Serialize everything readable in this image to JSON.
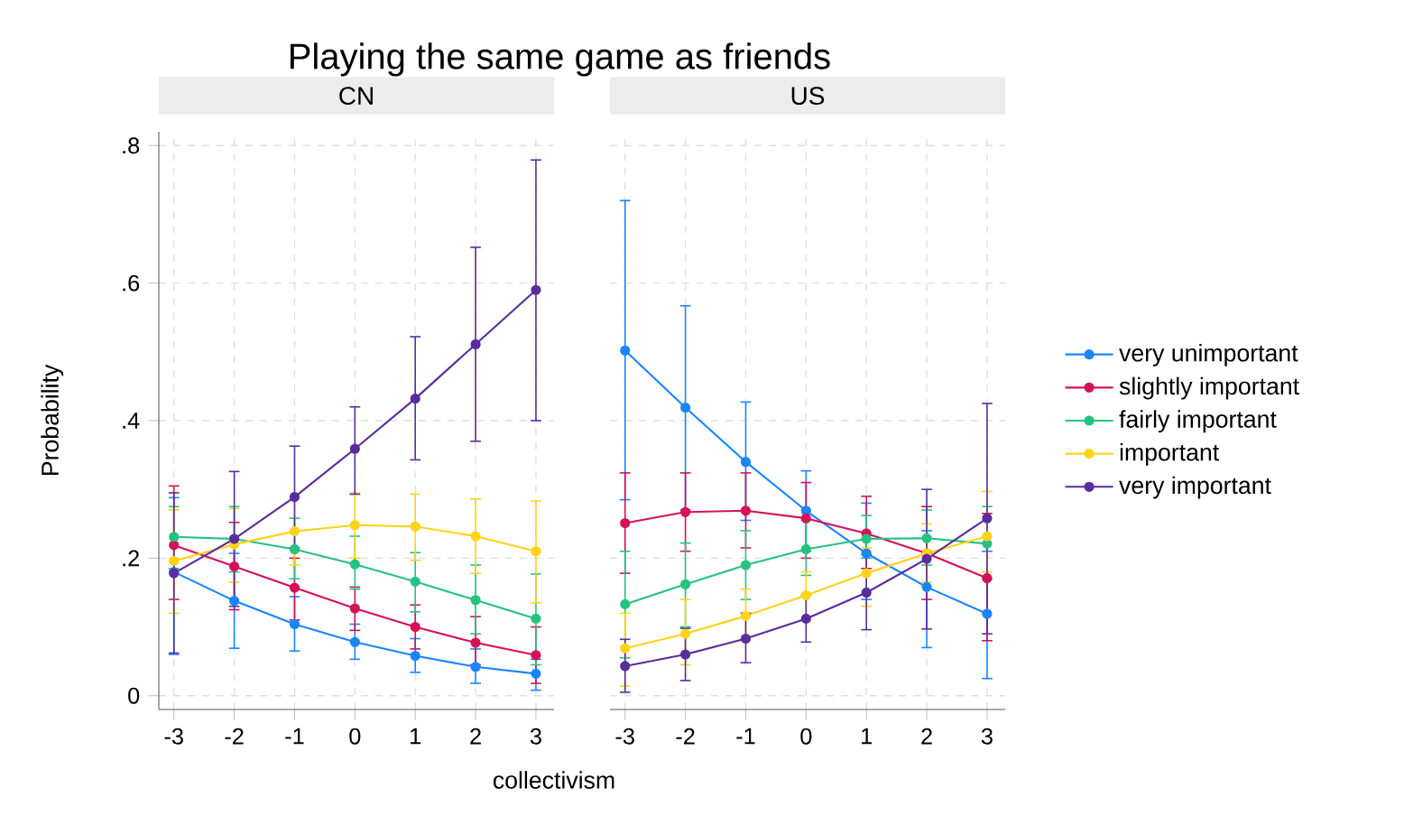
{
  "chart_data": [
    {
      "type": "line",
      "title": "Playing the same game as friends",
      "subtitle": "CN",
      "xlabel": "collectivism",
      "ylabel": "Probability",
      "x": [
        -3,
        -2,
        -1,
        0,
        1,
        2,
        3
      ],
      "xlim": [
        -3.25,
        3.3
      ],
      "ylim": [
        -0.02,
        0.82
      ],
      "xticks": [
        -3,
        -2,
        -1,
        0,
        1,
        2,
        3
      ],
      "yticks": [
        0,
        {
          "value": 0.2,
          "label": ".2"
        },
        {
          "value": 0.4,
          "label": ".4"
        },
        {
          "value": 0.6,
          "label": ".6"
        },
        {
          "value": 0.8,
          "label": ".8"
        }
      ],
      "grid": true,
      "marker": "circle",
      "series": [
        {
          "color": "#1a85ff",
          "values": [
            0.18,
            0.138,
            0.104,
            0.078,
            0.058,
            0.042,
            0.032
          ],
          "errors": [
            [
              0.06,
              0.288
            ],
            [
              0.069,
              0.207
            ],
            [
              0.065,
              0.144
            ],
            [
              0.053,
              0.104
            ],
            [
              0.034,
              0.083
            ],
            [
              0.018,
              0.068
            ],
            [
              0.008,
              0.053
            ]
          ]
        },
        {
          "color": "#d41159",
          "values": [
            0.219,
            0.188,
            0.157,
            0.127,
            0.1,
            0.077,
            0.059
          ],
          "errors": [
            [
              0.14,
              0.305
            ],
            [
              0.125,
              0.252
            ],
            [
              0.11,
              0.2
            ],
            [
              0.095,
              0.158
            ],
            [
              0.068,
              0.132
            ],
            [
              0.045,
              0.115
            ],
            [
              0.018,
              0.1
            ]
          ]
        },
        {
          "color": "#26c281",
          "values": [
            0.231,
            0.228,
            0.213,
            0.191,
            0.166,
            0.139,
            0.112
          ],
          "errors": [
            [
              0.185,
              0.275
            ],
            [
              0.18,
              0.275
            ],
            [
              0.17,
              0.258
            ],
            [
              0.155,
              0.232
            ],
            [
              0.122,
              0.208
            ],
            [
              0.09,
              0.19
            ],
            [
              0.045,
              0.177
            ]
          ]
        },
        {
          "color": "#ffd319",
          "values": [
            0.196,
            0.22,
            0.239,
            0.248,
            0.246,
            0.232,
            0.21
          ],
          "errors": [
            [
              0.12,
              0.27
            ],
            [
              0.165,
              0.272
            ],
            [
              0.19,
              0.29
            ],
            [
              0.2,
              0.295
            ],
            [
              0.197,
              0.293
            ],
            [
              0.178,
              0.286
            ],
            [
              0.135,
              0.283
            ]
          ]
        },
        {
          "color": "#5a2d9c",
          "values": [
            0.178,
            0.228,
            0.289,
            0.359,
            0.432,
            0.511,
            0.59
          ],
          "errors": [
            [
              0.062,
              0.295
            ],
            [
              0.13,
              0.326
            ],
            [
              0.215,
              0.363
            ],
            [
              0.293,
              0.42
            ],
            [
              0.343,
              0.522
            ],
            [
              0.37,
              0.652
            ],
            [
              0.4,
              0.779
            ]
          ]
        }
      ]
    },
    {
      "type": "line",
      "subtitle": "US",
      "tick_labels": "x",
      "x": [
        -3,
        -2,
        -1,
        0,
        1,
        2,
        3
      ],
      "xlim": [
        -3.25,
        3.3
      ],
      "ylim": [
        -0.02,
        0.82
      ],
      "xticks": [
        -3,
        -2,
        -1,
        0,
        1,
        2,
        3
      ],
      "yticks": [
        0,
        0.2,
        0.4,
        0.6,
        0.8
      ],
      "grid": true,
      "marker": "circle",
      "legend": "right",
      "series": [
        {
          "name": "very unimportant",
          "color": "#1a85ff",
          "values": [
            0.502,
            0.419,
            0.34,
            0.269,
            0.207,
            0.158,
            0.119
          ],
          "errors": [
            [
              0.285,
              0.72
            ],
            [
              0.27,
              0.567
            ],
            [
              0.255,
              0.427
            ],
            [
              0.21,
              0.327
            ],
            [
              0.14,
              0.28
            ],
            [
              0.07,
              0.24
            ],
            [
              0.025,
              0.21
            ]
          ]
        },
        {
          "name": "slightly important",
          "color": "#d41159",
          "values": [
            0.251,
            0.267,
            0.269,
            0.258,
            0.236,
            0.207,
            0.171
          ],
          "errors": [
            [
              0.178,
              0.324
            ],
            [
              0.21,
              0.324
            ],
            [
              0.215,
              0.324
            ],
            [
              0.2,
              0.31
            ],
            [
              0.185,
              0.29
            ],
            [
              0.14,
              0.275
            ],
            [
              0.08,
              0.265
            ]
          ]
        },
        {
          "name": "fairly important",
          "color": "#26c281",
          "values": [
            0.133,
            0.162,
            0.19,
            0.213,
            0.228,
            0.229,
            0.221
          ],
          "errors": [
            [
              0.055,
              0.21
            ],
            [
              0.1,
              0.222
            ],
            [
              0.14,
              0.24
            ],
            [
              0.175,
              0.255
            ],
            [
              0.2,
              0.262
            ],
            [
              0.19,
              0.27
            ],
            [
              0.17,
              0.275
            ]
          ]
        },
        {
          "name": "important",
          "color": "#ffd319",
          "values": [
            0.069,
            0.09,
            0.116,
            0.146,
            0.178,
            0.207,
            0.232
          ],
          "errors": [
            [
              0.014,
              0.12
            ],
            [
              0.045,
              0.14
            ],
            [
              0.08,
              0.155
            ],
            [
              0.11,
              0.18
            ],
            [
              0.13,
              0.215
            ],
            [
              0.165,
              0.25
            ],
            [
              0.18,
              0.297
            ]
          ]
        },
        {
          "name": "very important",
          "color": "#5a2d9c",
          "values": [
            0.043,
            0.06,
            0.083,
            0.112,
            0.15,
            0.199,
            0.258
          ],
          "errors": [
            [
              0.005,
              0.082
            ],
            [
              0.022,
              0.098
            ],
            [
              0.048,
              0.12
            ],
            [
              0.078,
              0.146
            ],
            [
              0.096,
              0.205
            ],
            [
              0.097,
              0.3
            ],
            [
              0.09,
              0.425
            ]
          ]
        }
      ]
    }
  ]
}
